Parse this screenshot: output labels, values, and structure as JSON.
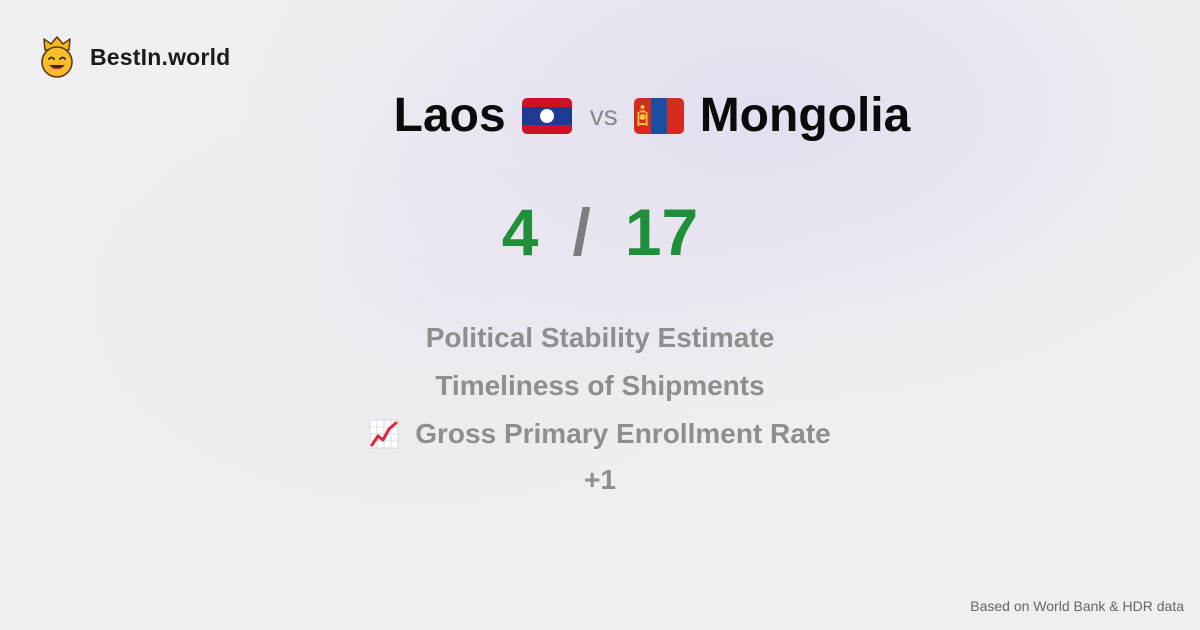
{
  "brand": {
    "name": "BestIn.world",
    "logo_icon": "crowned-smiley-logo"
  },
  "comparison": {
    "left": {
      "name": "Laos",
      "flag_icon": "laos-flag-icon",
      "score": "4"
    },
    "vs_label": "vs",
    "right": {
      "name": "Mongolia",
      "flag_icon": "mongolia-flag-icon",
      "score": "17"
    },
    "score_separator": "/"
  },
  "metrics": [
    {
      "label": "Political Stability Estimate",
      "icon": null
    },
    {
      "label": "Timeliness of Shipments",
      "icon": null
    },
    {
      "label": "Gross Primary Enrollment Rate",
      "icon": "chart-increasing-icon"
    }
  ],
  "more_label": "+1",
  "footer": {
    "source_note": "Based on World Bank & HDR data"
  },
  "colors": {
    "score": "#1f8f3a",
    "muted_text": "#8e8e8e",
    "background": "#efeff1"
  }
}
